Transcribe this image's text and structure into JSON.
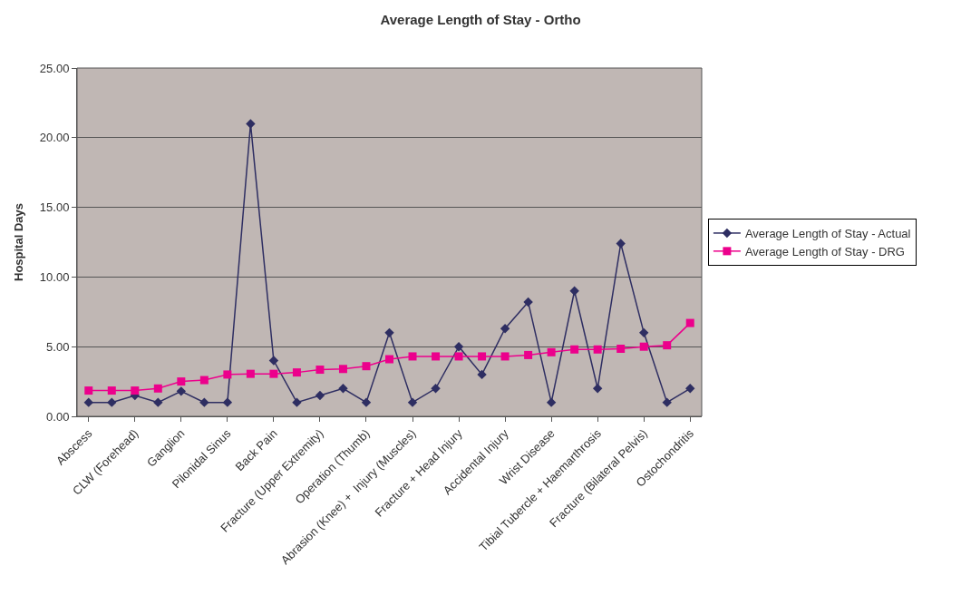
{
  "chart_data": {
    "type": "line",
    "title": "Average Length of Stay - Ortho",
    "ylabel": "Hospital Days",
    "categories": [
      "Abscess",
      null,
      "CLW (Forehead)",
      null,
      "Ganglion",
      null,
      "Pilonidal Sinus",
      null,
      "Back Pain",
      null,
      "Fracture (Upper Extremity)",
      null,
      "Operation (Thumb)",
      null,
      "Abrasion (Knee) +  Injury (Muscles)",
      null,
      "Fracture + Head Injury",
      null,
      "Accidental Injury",
      null,
      "Wrist Disease",
      null,
      "Tibial Tubercle + Haemarthrosis",
      null,
      "Fracture (Bilateral Pelvis)",
      null,
      "Ostochondritis"
    ],
    "series": [
      {
        "name": "Average Length of Stay - Actual",
        "color": "#2e2e62",
        "marker": "diamond",
        "values": [
          1,
          1,
          1.5,
          1,
          1.8,
          1,
          1,
          21,
          4,
          1,
          1.5,
          2,
          1,
          6,
          1,
          2,
          5,
          3,
          6.3,
          8.2,
          1,
          9,
          2,
          12.4,
          6,
          1,
          2
        ]
      },
      {
        "name": "Average Length of Stay - DRG",
        "color": "#ec008c",
        "marker": "square",
        "values": [
          1.85,
          1.85,
          1.85,
          2,
          2.5,
          2.6,
          3,
          3.05,
          3.05,
          3.15,
          3.35,
          3.4,
          3.6,
          4.1,
          4.3,
          4.3,
          4.3,
          4.3,
          4.3,
          4.4,
          4.6,
          4.8,
          4.8,
          4.85,
          5,
          5.1,
          6.7
        ]
      }
    ],
    "ylim": [
      0,
      25
    ],
    "yticks": [
      {
        "value": 0,
        "label": "0.00"
      },
      {
        "value": 5,
        "label": "5.00"
      },
      {
        "value": 10,
        "label": "10.00"
      },
      {
        "value": 15,
        "label": "15.00"
      },
      {
        "value": 20,
        "label": "20.00"
      },
      {
        "value": 25,
        "label": "25.00"
      }
    ],
    "grid": "y",
    "legend": "right"
  }
}
